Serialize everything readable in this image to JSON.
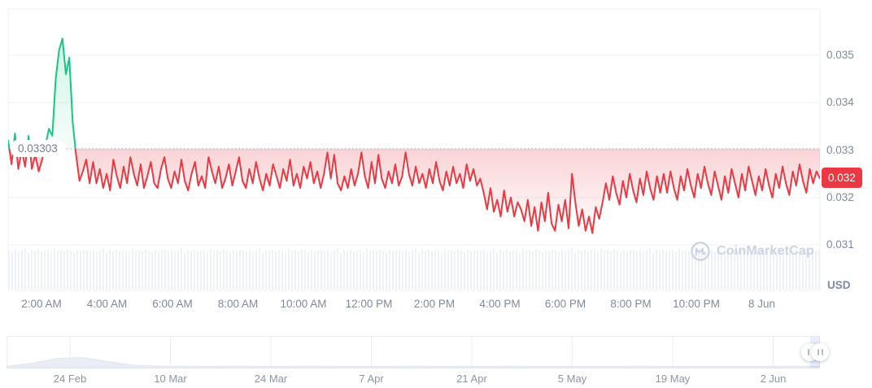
{
  "chart_data": {
    "type": "line",
    "baseline_label": "0.03303",
    "baseline": 0.03303,
    "last_price_label": "0.032",
    "unit_label": "USD",
    "watermark_text": "CoinMarketCap",
    "y_ticks": [
      0.035,
      0.034,
      0.033,
      0.032,
      0.031
    ],
    "y_tick_labels": [
      "0.035",
      "0.034",
      "0.033",
      "0.032",
      "0.031"
    ],
    "x_ticks": [
      "2:00 AM",
      "4:00 AM",
      "6:00 AM",
      "8:00 AM",
      "10:00 AM",
      "12:00 PM",
      "2:00 PM",
      "4:00 PM",
      "6:00 PM",
      "8:00 PM",
      "10:00 PM",
      "8 Jun"
    ],
    "series_usd": [
      0.0332,
      0.0327,
      0.03335,
      0.0326,
      0.033,
      0.03265,
      0.0333,
      0.0326,
      0.0329,
      0.03255,
      0.0328,
      0.0331,
      0.03345,
      0.0333,
      0.0345,
      0.0351,
      0.03535,
      0.0346,
      0.03495,
      0.0336,
      0.0329,
      0.03235,
      0.03255,
      0.0328,
      0.0323,
      0.03275,
      0.0323,
      0.0326,
      0.0322,
      0.0325,
      0.03215,
      0.0328,
      0.03245,
      0.0322,
      0.03265,
      0.0323,
      0.03285,
      0.0325,
      0.03225,
      0.0327,
      0.0322,
      0.03245,
      0.03275,
      0.0323,
      0.0322,
      0.0326,
      0.03285,
      0.0324,
      0.0322,
      0.03255,
      0.0323,
      0.0328,
      0.03235,
      0.03215,
      0.0325,
      0.03275,
      0.03225,
      0.03245,
      0.0322,
      0.03285,
      0.03255,
      0.0323,
      0.03265,
      0.0322,
      0.0324,
      0.0327,
      0.03225,
      0.03255,
      0.03285,
      0.03235,
      0.0322,
      0.0326,
      0.0323,
      0.03275,
      0.0324,
      0.03215,
      0.0325,
      0.03225,
      0.0327,
      0.03245,
      0.0322,
      0.0326,
      0.03235,
      0.0328,
      0.03225,
      0.0325,
      0.0322,
      0.03265,
      0.0324,
      0.03275,
      0.0323,
      0.03255,
      0.0322,
      0.0325,
      0.03295,
      0.0324,
      0.0329,
      0.0323,
      0.03215,
      0.03245,
      0.0322,
      0.0326,
      0.03225,
      0.0325,
      0.03295,
      0.03245,
      0.0322,
      0.03275,
      0.0323,
      0.0329,
      0.0324,
      0.0322,
      0.03255,
      0.0323,
      0.0327,
      0.03225,
      0.03245,
      0.03295,
      0.0325,
      0.03225,
      0.03265,
      0.0323,
      0.0325,
      0.0322,
      0.0326,
      0.0323,
      0.03275,
      0.03235,
      0.03215,
      0.03255,
      0.03225,
      0.03265,
      0.0323,
      0.0325,
      0.0322,
      0.0327,
      0.03235,
      0.0326,
      0.03225,
      0.0324,
      0.0321,
      0.03175,
      0.0322,
      0.0317,
      0.03195,
      0.0316,
      0.03215,
      0.0317,
      0.032,
      0.0316,
      0.0319,
      0.03175,
      0.0315,
      0.03195,
      0.0314,
      0.0318,
      0.0313,
      0.0319,
      0.0315,
      0.0321,
      0.03145,
      0.0313,
      0.03185,
      0.0315,
      0.03195,
      0.03135,
      0.0325,
      0.0319,
      0.0314,
      0.03175,
      0.0313,
      0.0316,
      0.03125,
      0.0318,
      0.03155,
      0.0319,
      0.0323,
      0.03195,
      0.03245,
      0.0321,
      0.03185,
      0.03235,
      0.032,
      0.0325,
      0.03215,
      0.0319,
      0.0324,
      0.03205,
      0.03255,
      0.0322,
      0.03195,
      0.03245,
      0.0321,
      0.0325,
      0.0321,
      0.03255,
      0.0322,
      0.03195,
      0.03245,
      0.03215,
      0.0326,
      0.03225,
      0.032,
      0.0325,
      0.0322,
      0.03265,
      0.0323,
      0.03205,
      0.03255,
      0.03225,
      0.03195,
      0.03245,
      0.0321,
      0.0326,
      0.0323,
      0.032,
      0.0325,
      0.03215,
      0.03265,
      0.03235,
      0.03205,
      0.03245,
      0.03215,
      0.0326,
      0.03225,
      0.032,
      0.0325,
      0.0322,
      0.03265,
      0.0323,
      0.03205,
      0.03255,
      0.03225,
      0.0327,
      0.03235,
      0.0321,
      0.0326,
      0.0323,
      0.03255,
      0.0324
    ],
    "volume_pattern": [
      0.8,
      0.5,
      0.9,
      0.4,
      0.7,
      1,
      0.3,
      0.8,
      0.6,
      0.9,
      0.5,
      0.7,
      0.85,
      0.4,
      0.95,
      0.6,
      0.75,
      0.5,
      0.9,
      0.65,
      0.35,
      0.8,
      0.55,
      0.7
    ],
    "navigator": {
      "date_ticks": [
        "24 Feb",
        "10 Mar",
        "24 Mar",
        "7 Apr",
        "21 Apr",
        "5 May",
        "19 May",
        "2 Jun"
      ],
      "spark": [
        0.06,
        0.22,
        0.5,
        0.55,
        0.32,
        0.12,
        0.07,
        0.06,
        0.05,
        0.06,
        0.05,
        0.05,
        0.06,
        0.05,
        0.05,
        0.05,
        0.06,
        0.05,
        0.05,
        0.05,
        0.06,
        0.05,
        0.05,
        0.05,
        0.05,
        0.06,
        0.05,
        0.05,
        0.05,
        0.05,
        0.05,
        0.06,
        0.06
      ],
      "selected_range_frac": [
        0.988,
        1.0
      ]
    },
    "theme": {
      "up": "#16c784",
      "down": "#ea3943",
      "badge_bg": "#ea3943",
      "grid": "#eff2f5",
      "axis_text": "#808a9d",
      "volume_bar": "#eef1f6",
      "baseline_dots": "#a9b3c2",
      "watermark": "#cdd3e6",
      "nav_border": "#e9edf2",
      "nav_spark": "#e9edf4",
      "nav_highlight": "rgba(104,132,245,0.14)"
    }
  }
}
